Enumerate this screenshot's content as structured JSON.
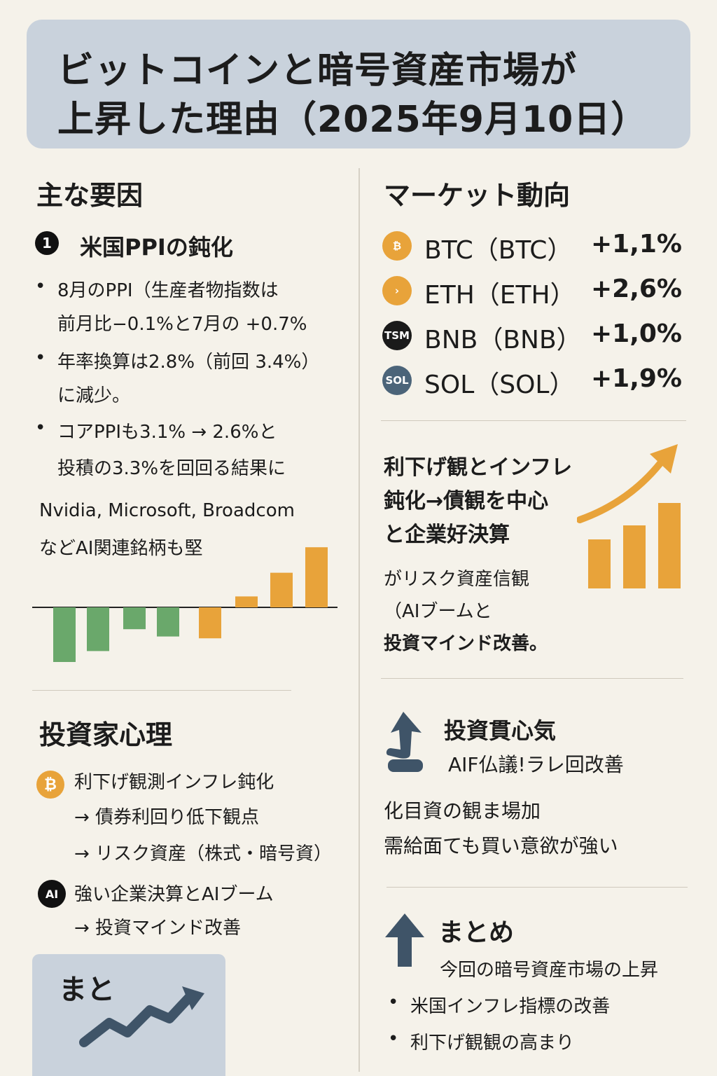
{
  "title": {
    "line1": "ビットコインと暗号資産市場が",
    "line2": "上昇した理由（2025年9月10日）"
  },
  "left": {
    "heading": "主な要因",
    "factor1": {
      "number": "1",
      "label": "米国PPIの鈍化",
      "bullets": [
        [
          "8月のPPI（生産者物指数は",
          "前月比−0.1%と7月の +0.7%"
        ],
        [
          "年率換算は2.8%（前回 3.4%）",
          "に減少。"
        ],
        [
          "コアPPIも3.1% → 2.6%と",
          "投積の3.3%を回回る結果に"
        ]
      ]
    },
    "ai_note": {
      "line1": "Nvidia, Microsoft, Broadcom",
      "line2": "などAI関連銘柄も堅"
    },
    "chart_data": {
      "type": "bar",
      "values": [
        -3.0,
        -2.4,
        -1.2,
        -1.6,
        -1.7,
        0.6,
        1.9,
        3.3
      ],
      "colors": [
        "#6aa86b",
        "#6aa86b",
        "#6aa86b",
        "#6aa86b",
        "#e8a33a",
        "#e8a33a",
        "#e8a33a",
        "#e8a33a"
      ]
    },
    "psych": {
      "heading": "投資家心理",
      "item1": {
        "icon": "bitcoin-icon",
        "lines": [
          "利下げ観測インフレ鈍化",
          "→ 債券利回り低下観点",
          "→ リスク資産（株式・暗号資）"
        ]
      },
      "item2": {
        "badge": "AI",
        "lines": [
          "強い企業決算とAIブーム",
          "→ 投資マインド改善"
        ]
      }
    },
    "summary_box": {
      "label": "まと"
    }
  },
  "right": {
    "heading": "マーケット動向",
    "market": [
      {
        "symbol": "BTC",
        "name": "BTC（BTC）",
        "change": "+1,1%",
        "badge": "₿",
        "color": "#e8a33a"
      },
      {
        "symbol": "ETH",
        "name": "ETH（ETH）",
        "change": "+2,6%",
        "badge": "›",
        "color": "#e8a33a"
      },
      {
        "symbol": "BNB",
        "name": "BNB（BNB）",
        "change": "+1,0%",
        "badge": "TSM",
        "color": "#1a1a1a"
      },
      {
        "symbol": "SOL",
        "name": "SOL（SOL）",
        "change": "+1,9%",
        "badge": "SOL",
        "color": "#4b6479"
      }
    ],
    "trend": {
      "lines": [
        "利下げ観とインフレ",
        "鈍化→債観を中心",
        "と企業好決算"
      ],
      "sub": [
        "がリスク資産信観",
        "（AIブームと",
        "投資マインド改善。"
      ]
    },
    "sentiment": {
      "title": "投資貫心気",
      "sub": "AIF仏議!ラレ回改善",
      "body": [
        "化目資の観ま場加",
        "需給面ても買い意欲が強い"
      ]
    },
    "summary": {
      "heading": "まとめ",
      "sub": "今回の暗号資産市場の上昇",
      "bullets": [
        "米国インフレ指標の改善",
        "利下げ観観の高まり"
      ]
    }
  }
}
